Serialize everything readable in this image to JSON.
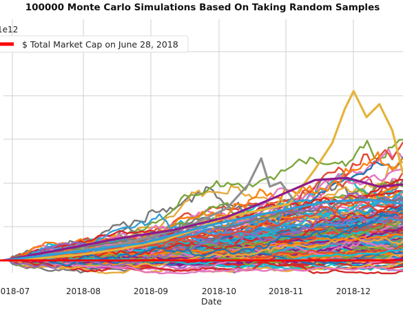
{
  "chart_data": {
    "type": "line",
    "title": "100000 Monte Carlo Simulations Based On Taking Random Samples",
    "xlabel": "Date",
    "ylabel": "",
    "y_scale_label": "1e12",
    "x_ticks": [
      "2018-07",
      "2018-08",
      "2018-09",
      "2018-10",
      "2018-11",
      "2018-12"
    ],
    "x_range": [
      "2018-06-28",
      "2018-12-31"
    ],
    "grid": true,
    "legend": {
      "placement": "top-left",
      "entries": [
        {
          "label": "$ Total Market Cap on June 28, 2018",
          "color": "#ff0000"
        }
      ]
    },
    "reference_line": {
      "name": "$ Total Market Cap on June 28, 2018",
      "color": "#ff0000",
      "relative_value": 1.0
    },
    "simulation_count": 100000,
    "palette": [
      "#1f77b4",
      "#e24a33",
      "#8c1a8c",
      "#e6a93a",
      "#777777",
      "#2f9ed8",
      "#7aa53a",
      "#ff7f0e",
      "#d62728",
      "#9467bd",
      "#17becf",
      "#e377c2"
    ],
    "highlight_paths": [
      {
        "color": "#e6b23a",
        "points": [
          [
            "2018-06-28",
            1.0
          ],
          [
            "2018-07-15",
            1.05
          ],
          [
            "2018-08-01",
            1.12
          ],
          [
            "2018-08-20",
            1.25
          ],
          [
            "2018-09-10",
            1.45
          ],
          [
            "2018-09-25",
            1.7
          ],
          [
            "2018-10-10",
            2.0
          ],
          [
            "2018-10-25",
            2.15
          ],
          [
            "2018-11-08",
            2.3
          ],
          [
            "2018-11-20",
            3.1
          ],
          [
            "2018-11-28",
            3.7
          ],
          [
            "2018-12-04",
            4.5
          ],
          [
            "2018-12-08",
            4.9
          ],
          [
            "2018-12-14",
            4.3
          ],
          [
            "2018-12-20",
            4.6
          ],
          [
            "2018-12-26",
            4.0
          ],
          [
            "2018-12-31",
            3.0
          ]
        ]
      },
      {
        "color": "#909090",
        "points": [
          [
            "2018-06-28",
            1.0
          ],
          [
            "2018-07-20",
            1.15
          ],
          [
            "2018-08-15",
            1.3
          ],
          [
            "2018-09-05",
            1.55
          ],
          [
            "2018-09-25",
            1.85
          ],
          [
            "2018-10-10",
            2.2
          ],
          [
            "2018-10-20",
            2.75
          ],
          [
            "2018-10-26",
            3.35
          ],
          [
            "2018-10-30",
            2.7
          ],
          [
            "2018-11-04",
            2.8
          ],
          [
            "2018-11-10",
            2.4
          ]
        ]
      },
      {
        "color": "#8c1a8c",
        "points": [
          [
            "2018-06-28",
            1.0
          ],
          [
            "2018-07-25",
            1.25
          ],
          [
            "2018-08-20",
            1.5
          ],
          [
            "2018-09-15",
            1.7
          ],
          [
            "2018-10-10",
            2.0
          ],
          [
            "2018-10-30",
            2.4
          ],
          [
            "2018-11-20",
            2.85
          ],
          [
            "2018-12-05",
            2.9
          ],
          [
            "2018-12-20",
            2.7
          ],
          [
            "2018-12-31",
            2.75
          ]
        ]
      },
      {
        "color": "#2f9ed8",
        "points": [
          [
            "2018-06-28",
            1.0
          ],
          [
            "2018-08-01",
            1.2
          ],
          [
            "2018-09-01",
            1.4
          ],
          [
            "2018-10-01",
            1.8
          ],
          [
            "2018-10-25",
            2.05
          ],
          [
            "2018-11-25",
            2.35
          ],
          [
            "2018-12-15",
            2.4
          ],
          [
            "2018-12-31",
            2.3
          ]
        ]
      }
    ]
  }
}
